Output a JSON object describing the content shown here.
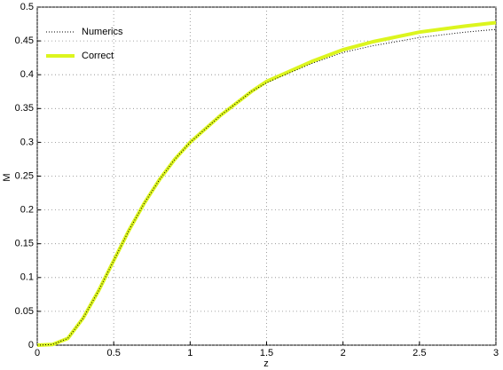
{
  "chart_data": {
    "type": "line",
    "xlabel": "z",
    "ylabel": "M",
    "x": [
      0,
      0.1,
      0.2,
      0.3,
      0.4,
      0.5,
      0.6,
      0.7,
      0.8,
      0.9,
      1.0,
      1.2,
      1.4,
      1.5,
      1.6,
      1.8,
      2.0,
      2.2,
      2.5,
      2.8,
      3.0
    ],
    "series": [
      {
        "name": "Numerics",
        "color": "#000000",
        "style": "dotted",
        "values": [
          0,
          0.001,
          0.01,
          0.04,
          0.08,
          0.125,
          0.17,
          0.21,
          0.245,
          0.275,
          0.3,
          0.34,
          0.375,
          0.388,
          0.398,
          0.417,
          0.433,
          0.443,
          0.455,
          0.463,
          0.467
        ]
      },
      {
        "name": "Correct",
        "color": "#dcf51e",
        "style": "solid",
        "values": [
          0,
          0.001,
          0.01,
          0.04,
          0.08,
          0.125,
          0.17,
          0.21,
          0.245,
          0.275,
          0.3,
          0.34,
          0.375,
          0.39,
          0.4,
          0.42,
          0.437,
          0.449,
          0.463,
          0.472,
          0.477
        ]
      }
    ],
    "xlim": [
      0,
      3
    ],
    "xticks": [
      0,
      0.5,
      1,
      1.5,
      2,
      2.5,
      3
    ],
    "ylim": [
      0,
      0.5
    ],
    "yticks": [
      0,
      0.05,
      0.1,
      0.15,
      0.2,
      0.25,
      0.3,
      0.35,
      0.4,
      0.45,
      0.5
    ],
    "grid": true,
    "legend": "upper-left"
  }
}
